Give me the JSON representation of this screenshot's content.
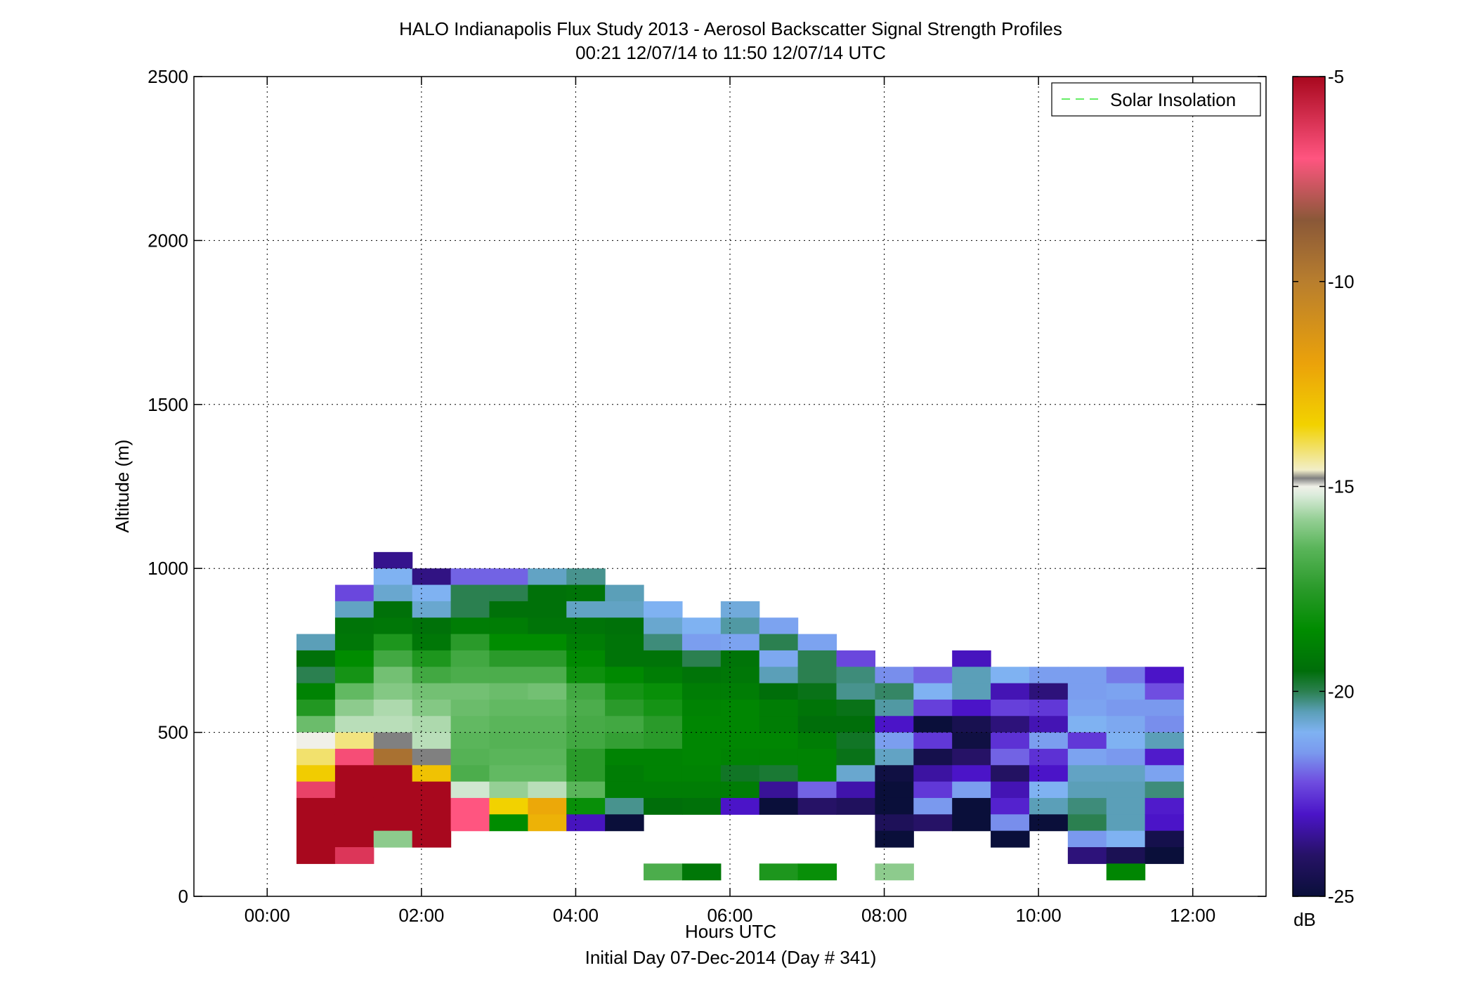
{
  "chart_data": {
    "type": "heatmap",
    "title": "HALO Indianapolis Flux Study 2013 - Aerosol Backscatter Signal Strength Profiles",
    "subtitle": "00:21 12/07/14 to 11:50 12/07/14  UTC",
    "xlabel": "Hours UTC",
    "xlabel2": "Initial Day 07-Dec-2014 (Day # 341)",
    "ylabel": "Altitude (m)",
    "xlim": [
      -0.95,
      12.95
    ],
    "ylim": [
      0,
      2500
    ],
    "grid": true,
    "x_ticks": [
      0,
      2,
      4,
      6,
      8,
      10,
      12
    ],
    "x_tick_labels": [
      "00:00",
      "02:00",
      "04:00",
      "06:00",
      "08:00",
      "10:00",
      "12:00"
    ],
    "y_ticks": [
      0,
      500,
      1000,
      1500,
      2000,
      2500
    ],
    "y_tick_labels": [
      "0",
      "500",
      "1000",
      "1500",
      "2000",
      "2500"
    ],
    "legend": {
      "entries": [
        {
          "label": "Solar Insolation",
          "color": "#66ee66",
          "style": "dashed"
        }
      ],
      "placement": "top-right"
    },
    "colorbar": {
      "unit": "dB",
      "range": [
        -25,
        -5
      ],
      "ticks": [
        -5,
        -10,
        -15,
        -20,
        -25
      ],
      "tick_labels": [
        "-5",
        "-10",
        "-15",
        "-20",
        "-25"
      ],
      "stops": [
        {
          "value": -25.0,
          "color": "#0a0f3a"
        },
        {
          "value": -24.0,
          "color": "#261266"
        },
        {
          "value": -23.0,
          "color": "#4b14c8"
        },
        {
          "value": -22.2,
          "color": "#6f4ee0"
        },
        {
          "value": -21.5,
          "color": "#7a99ee"
        },
        {
          "value": -21.0,
          "color": "#7fb2f2"
        },
        {
          "value": -20.5,
          "color": "#5b9fb8"
        },
        {
          "value": -20.0,
          "color": "#2b8050"
        },
        {
          "value": -19.5,
          "color": "#006e0a"
        },
        {
          "value": -18.5,
          "color": "#008c00"
        },
        {
          "value": -17.5,
          "color": "#2a9a2a"
        },
        {
          "value": -16.5,
          "color": "#5ab55a"
        },
        {
          "value": -15.8,
          "color": "#95cf95"
        },
        {
          "value": -15.2,
          "color": "#dcecdc"
        },
        {
          "value": -15.0,
          "color": "#f0f0e8"
        },
        {
          "value": -14.8,
          "color": "#808080"
        },
        {
          "value": -14.6,
          "color": "#f2eec8"
        },
        {
          "value": -13.5,
          "color": "#f2d200"
        },
        {
          "value": -12.0,
          "color": "#eba20a"
        },
        {
          "value": -10.0,
          "color": "#b87e2e"
        },
        {
          "value": -8.5,
          "color": "#8a5838"
        },
        {
          "value": -7.0,
          "color": "#ff5580"
        },
        {
          "value": -5.0,
          "color": "#a8081e"
        }
      ]
    },
    "cell_width_h": 0.5,
    "cell_height_m": 50,
    "columns": [
      {
        "x": 0.63,
        "top": 800,
        "values": [
          -20.5,
          -19.4,
          -20.0,
          -18.8,
          -17.7,
          -16.3,
          -15.0,
          -14.1,
          -13.3,
          -6.5,
          -5.0,
          -5.0,
          -5.0,
          -5.0
        ]
      },
      {
        "x": 1.13,
        "top": 950,
        "values": [
          -22.3,
          -20.6,
          -19.3,
          -19.2,
          -18.5,
          -18.0,
          -16.4,
          -15.9,
          -15.5,
          -14.2,
          -6.8,
          -5.0,
          -5.0,
          -5.0,
          -5.0,
          -5.0,
          -6.2
        ]
      },
      {
        "x": 1.63,
        "top": 1050,
        "values": [
          -23.6,
          -21.0,
          -20.7,
          -19.4,
          -19.2,
          -17.8,
          -17.0,
          -16.2,
          -16.0,
          -15.6,
          -15.5,
          -14.8,
          -9.5,
          -5.0,
          -5.0,
          -5.0,
          -5.0,
          -15.9
        ]
      },
      {
        "x": 2.13,
        "top": 1000,
        "values": [
          -23.7,
          -21.0,
          -20.7,
          -19.4,
          -19.2,
          -17.8,
          -17.0,
          -16.2,
          -16.0,
          -15.6,
          -15.5,
          -14.8,
          -13.0,
          -5.0,
          -5.0,
          -5.0,
          -5.0
        ]
      },
      {
        "x": 2.63,
        "top": 1000,
        "values": [
          -22.0,
          -20.0,
          -20.0,
          -19.0,
          -17.5,
          -17.0,
          -16.8,
          -16.2,
          -16.3,
          -16.4,
          -16.5,
          -16.6,
          -16.8,
          -15.3,
          -7.0,
          -7.0
        ]
      },
      {
        "x": 3.13,
        "top": 1000,
        "values": [
          -22.0,
          -20.0,
          -19.4,
          -19.0,
          -18.5,
          -17.5,
          -16.8,
          -16.3,
          -16.4,
          -16.5,
          -16.6,
          -16.5,
          -16.4,
          -15.8,
          -13.5,
          -18.5
        ]
      },
      {
        "x": 3.63,
        "top": 1000,
        "values": [
          -20.6,
          -19.4,
          -19.4,
          -19.3,
          -18.5,
          -17.5,
          -16.8,
          -16.2,
          -16.4,
          -16.5,
          -16.6,
          -16.5,
          -16.4,
          -15.5,
          -12.2,
          -12.5
        ]
      },
      {
        "x": 4.13,
        "top": 1000,
        "values": [
          -20.3,
          -19.3,
          -20.6,
          -19.3,
          -19.0,
          -18.6,
          -18.2,
          -17.0,
          -16.8,
          -16.9,
          -17.0,
          -17.5,
          -17.5,
          -16.5,
          -18.3,
          -23.1
        ]
      },
      {
        "x": 4.63,
        "top": 950,
        "values": [
          -20.5,
          -20.6,
          -19.4,
          -19.3,
          -19.3,
          -18.6,
          -18.0,
          -17.5,
          -17.0,
          -17.3,
          -18.8,
          -19.0,
          -19.0,
          -20.3,
          -25.0
        ]
      },
      {
        "x": 5.13,
        "top": 900,
        "values": [
          -21.0,
          -20.7,
          -20.2,
          -19.3,
          -19.0,
          -18.3,
          -18.0,
          -17.5,
          -17.5,
          -18.8,
          -18.8,
          -19.0,
          -19.5
        ]
      },
      {
        "x": 5.63,
        "top": 850,
        "values": [
          -21.0,
          -21.4,
          -20.0,
          -19.3,
          -19.0,
          -18.8,
          -18.7,
          -18.7,
          -18.7,
          -18.8,
          -19.0,
          -19.4
        ]
      },
      {
        "x": 6.13,
        "top": 900,
        "values": [
          -20.8,
          -20.4,
          -21.3,
          -19.3,
          -19.2,
          -19.0,
          -18.7,
          -18.7,
          -18.7,
          -18.8,
          -19.7,
          -19.0,
          -23.0
        ]
      },
      {
        "x": 6.63,
        "top": 850,
        "values": [
          -21.3,
          -20.0,
          -21.2,
          -20.5,
          -19.5,
          -19.0,
          -19.0,
          -18.7,
          -18.8,
          -19.8,
          -23.5,
          -25.0
        ]
      },
      {
        "x": 7.13,
        "top": 800,
        "values": [
          -21.3,
          -20.0,
          -20.0,
          -19.6,
          -19.3,
          -19.5,
          -19.0,
          -18.8,
          -18.8,
          -22.0,
          -24.0
        ]
      },
      {
        "x": 7.63,
        "top": 750,
        "values": [
          -22.3,
          -20.2,
          -20.3,
          -19.6,
          -19.5,
          -19.7,
          -19.6,
          -20.7,
          -23.3,
          -24.2
        ]
      },
      {
        "x": 8.13,
        "top": 700,
        "values": [
          -21.6,
          -20.1,
          -20.4,
          -23.0,
          -21.4,
          -20.6,
          -24.8,
          -25.0,
          -25.0,
          -24.3,
          -25.0
        ]
      },
      {
        "x": 8.63,
        "top": 700,
        "values": [
          -22.0,
          -21.0,
          -22.4,
          -25.0,
          -22.5,
          -24.6,
          -23.4,
          -22.5,
          -21.5,
          -24.0
        ]
      },
      {
        "x": 9.13,
        "top": 750,
        "values": [
          -23.1,
          -20.5,
          -20.5,
          -23.0,
          -24.5,
          -24.8,
          -24.0,
          -23.0,
          -21.4,
          -25.0,
          -25.0
        ]
      },
      {
        "x": 9.63,
        "top": 700,
        "values": [
          -21.0,
          -23.2,
          -22.4,
          -23.8,
          -22.6,
          -22.0,
          -24.1,
          -23.2,
          -22.8,
          -21.6,
          -25.0
        ]
      },
      {
        "x": 10.13,
        "top": 700,
        "values": [
          -21.4,
          -23.8,
          -22.5,
          -23.2,
          -21.4,
          -22.6,
          -23.0,
          -21.0,
          -20.5,
          -25.0
        ]
      },
      {
        "x": 10.63,
        "top": 700,
        "values": [
          -21.4,
          -21.4,
          -21.3,
          -21.0,
          -22.5,
          -21.3,
          -20.6,
          -20.5,
          -20.2,
          -20.0,
          -21.5,
          -23.8
        ]
      },
      {
        "x": 11.13,
        "top": 700,
        "values": [
          -21.8,
          -21.3,
          -21.5,
          -21.2,
          -21.0,
          -21.5,
          -20.6,
          -20.5,
          -20.5,
          -20.5,
          -21.0,
          -24.4
        ]
      },
      {
        "x": 11.63,
        "top": 700,
        "values": [
          -23.0,
          -22.2,
          -21.5,
          -21.6,
          -20.5,
          -22.9,
          -21.3,
          -20.2,
          -22.9,
          -23.0,
          -24.6,
          -25.0
        ]
      }
    ],
    "surface_cells": [
      {
        "x": 5.13,
        "top": 100,
        "value": -16.8
      },
      {
        "x": 5.63,
        "top": 100,
        "value": -19.2
      },
      {
        "x": 6.63,
        "top": 100,
        "value": -17.8
      },
      {
        "x": 7.13,
        "top": 100,
        "value": -18.3
      },
      {
        "x": 8.13,
        "top": 100,
        "value": -15.9
      },
      {
        "x": 11.13,
        "top": 100,
        "value": -18.7
      }
    ]
  }
}
